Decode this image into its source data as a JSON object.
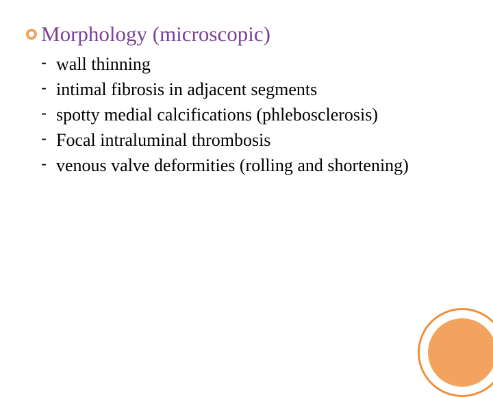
{
  "title": {
    "text": "Morphology (microscopic)",
    "color": "#7b3f98",
    "fontsize": 31,
    "bullet_border_color": "#f2a45f"
  },
  "list": {
    "dash_char": "-",
    "items": [
      "wall thinning",
      "intimal fibrosis in adjacent segments",
      "spotty medial calcifications (phlebosclerosis)",
      "Focal intraluminal thrombosis",
      "venous valve deformities (rolling and shortening)"
    ],
    "text_color": "#000000",
    "fontsize": 26
  },
  "decor": {
    "outer_border_color": "#ee8f3e",
    "inner_fill_color": "#f2a45f"
  },
  "background_color": "#ffffff"
}
